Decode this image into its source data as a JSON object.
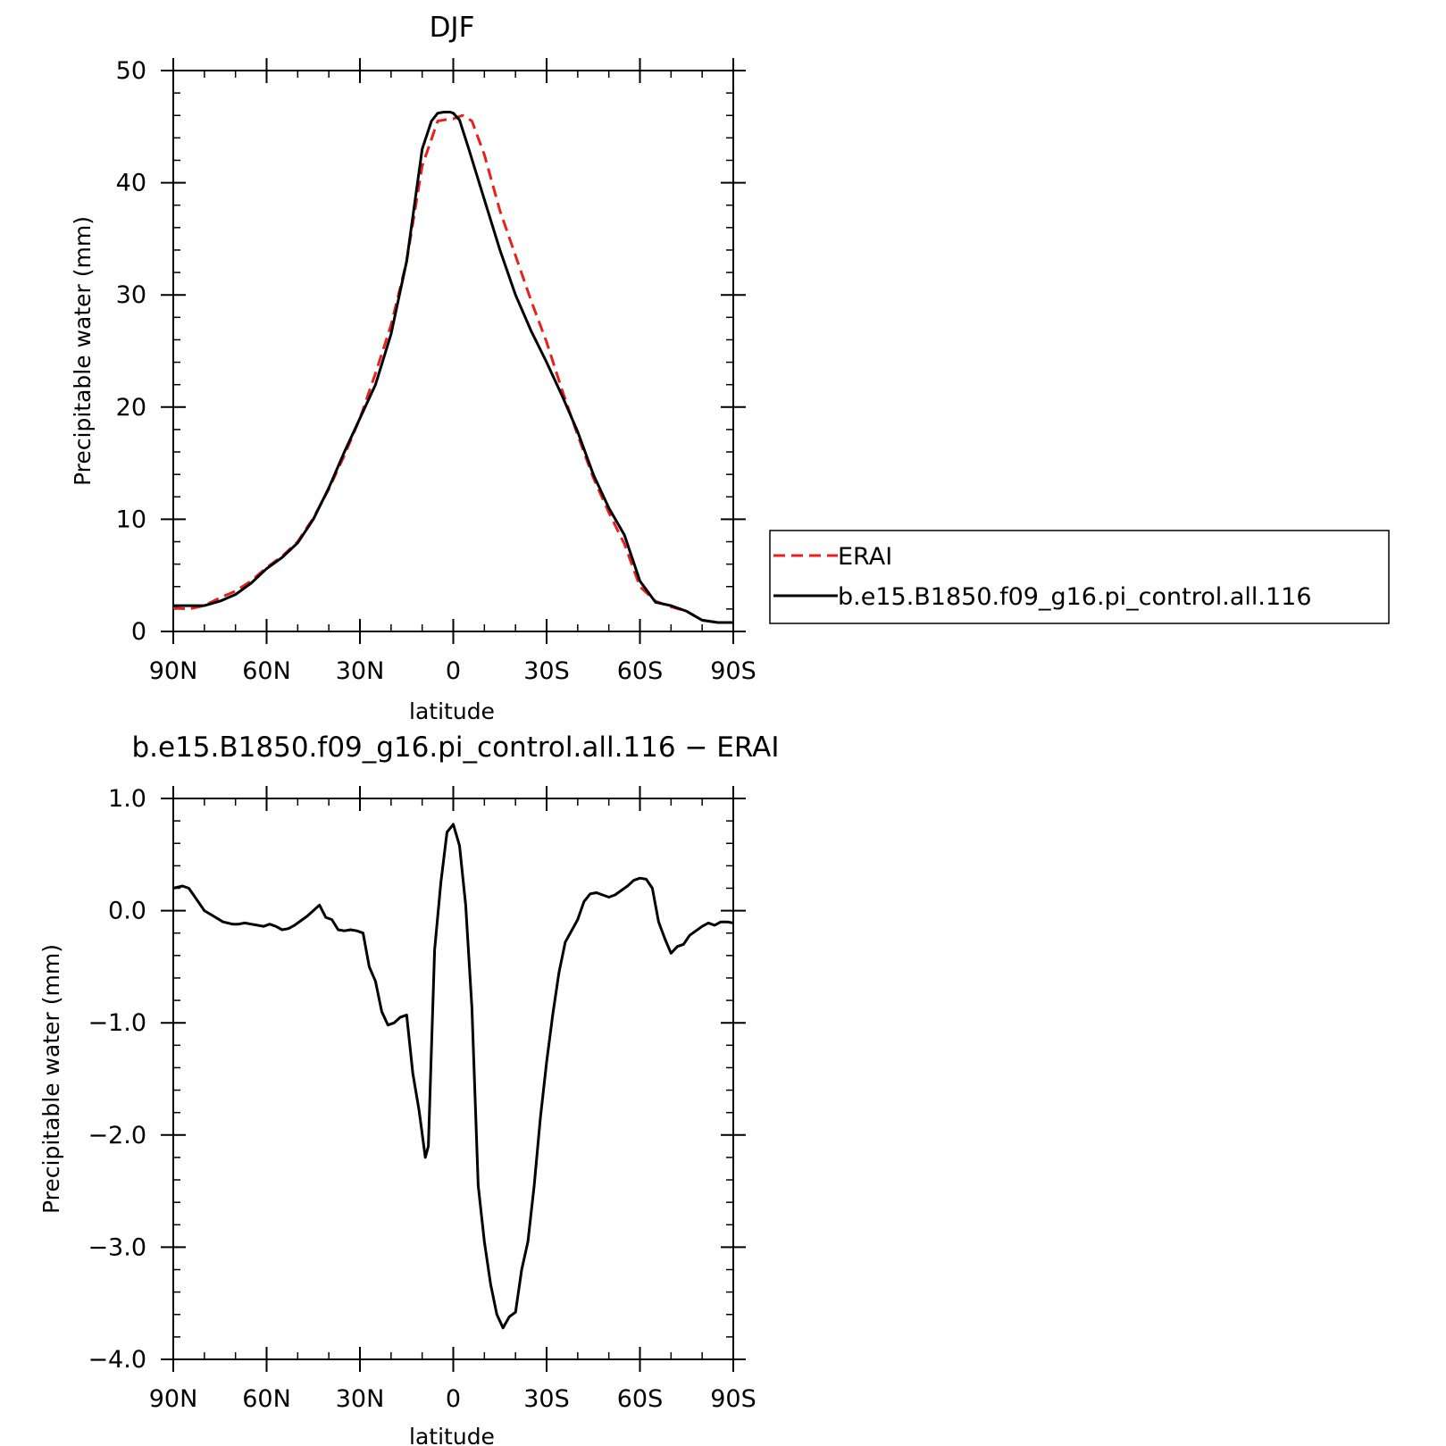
{
  "chart_data": [
    {
      "type": "line",
      "title": "DJF",
      "xlabel": "latitude",
      "ylabel": "Precipitable water (mm)",
      "xlim": [
        -90,
        90
      ],
      "ylim": [
        0,
        50
      ],
      "x_ticks": [
        -90,
        -60,
        -30,
        0,
        30,
        60,
        90
      ],
      "x_tick_labels": [
        "90N",
        "60N",
        "30N",
        "0",
        "30S",
        "60S",
        "90S"
      ],
      "y_ticks": [
        0,
        10,
        20,
        30,
        40,
        50
      ],
      "y_tick_labels": [
        "0",
        "10",
        "20",
        "30",
        "40",
        "50"
      ],
      "grid": false,
      "legend_position": "right",
      "series": [
        {
          "name": "ERAI",
          "color": "#e8211f",
          "dash": "dashed",
          "x": [
            -90,
            -85,
            -80,
            -75,
            -70,
            -65,
            -60,
            -55,
            -50,
            -45,
            -40,
            -35,
            -30,
            -25,
            -20,
            -15,
            -10,
            -5,
            -3,
            0,
            3,
            6,
            10,
            15,
            20,
            25,
            30,
            35,
            40,
            45,
            50,
            55,
            60,
            65,
            70,
            75,
            80,
            85,
            90
          ],
          "y": [
            2.1,
            2.0,
            2.3,
            3.0,
            3.6,
            4.5,
            5.7,
            6.7,
            8.0,
            10.1,
            12.7,
            15.7,
            19.0,
            23.0,
            27.3,
            33.0,
            41.5,
            45.5,
            45.6,
            45.7,
            46.0,
            45.5,
            42.5,
            37.5,
            33.5,
            29.5,
            25.8,
            21.5,
            17.5,
            13.7,
            10.6,
            7.8,
            4.0,
            2.7,
            2.2,
            1.8,
            1.0,
            0.8,
            0.8
          ],
          "y_note": "values at x 60..90 listed by order"
        },
        {
          "name": "b.e15.B1850.f09_g16.pi_control.all.116",
          "color": "#000000",
          "dash": "solid",
          "x": [
            -90,
            -85,
            -80,
            -75,
            -70,
            -65,
            -60,
            -55,
            -50,
            -45,
            -40,
            -35,
            -30,
            -25,
            -20,
            -15,
            -10,
            -7,
            -5,
            -3,
            -1,
            0,
            2,
            5,
            10,
            15,
            20,
            25,
            30,
            35,
            40,
            45,
            50,
            55,
            60,
            65,
            70,
            75,
            80,
            85,
            90
          ],
          "y": [
            2.3,
            2.3,
            2.3,
            2.7,
            3.3,
            4.3,
            5.6,
            6.6,
            7.9,
            10.0,
            12.8,
            16.0,
            19.0,
            22.0,
            26.5,
            33.0,
            43.0,
            45.5,
            46.2,
            46.3,
            46.3,
            46.2,
            45.6,
            43.0,
            38.5,
            34.0,
            30.0,
            26.8,
            24.0,
            21.0,
            17.8,
            14.0,
            11.0,
            8.6,
            4.5,
            2.6,
            2.3,
            1.8,
            1.0,
            0.8,
            0.8
          ]
        }
      ]
    },
    {
      "type": "line",
      "title": "b.e15.B1850.f09_g16.pi_control.all.116 − ERAI",
      "xlabel": "latitude",
      "ylabel": "Precipitable water (mm)",
      "xlim": [
        -90,
        90
      ],
      "ylim": [
        -4.0,
        1.0
      ],
      "x_ticks": [
        -90,
        -60,
        -30,
        0,
        30,
        60,
        90
      ],
      "x_tick_labels": [
        "90N",
        "60N",
        "30N",
        "0",
        "30S",
        "60S",
        "90S"
      ],
      "y_ticks": [
        1.0,
        0.0,
        -1.0,
        -2.0,
        -3.0,
        -4.0
      ],
      "y_tick_labels": [
        "1.0",
        "0.0",
        "−1.0",
        "−2.0",
        "−3.0",
        "−4.0"
      ],
      "grid": false,
      "series": [
        {
          "color": "#000000",
          "dash": "solid",
          "x": [
            -90,
            -87,
            -85,
            -83,
            -80,
            -77,
            -74,
            -71,
            -69,
            -67,
            -65,
            -63,
            -61,
            -59,
            -57,
            -55,
            -53,
            -51,
            -49,
            -47,
            -45,
            -43,
            -41,
            -39,
            -37,
            -35,
            -33,
            -31,
            -29,
            -27,
            -25,
            -23,
            -21,
            -19,
            -17,
            -15,
            -13,
            -11,
            -9,
            -8,
            -6,
            -4,
            -2,
            0,
            2,
            4,
            6,
            8,
            10,
            12,
            14,
            16,
            18,
            20,
            22,
            24,
            26,
            28,
            30,
            32,
            34,
            36,
            38,
            40,
            42,
            44,
            46,
            48,
            50,
            52,
            54,
            56,
            58,
            60,
            62,
            64,
            66,
            68,
            70,
            72,
            74,
            76,
            78,
            80,
            82,
            84,
            86,
            88,
            90
          ],
          "y": [
            0.2,
            0.22,
            0.2,
            0.12,
            0.0,
            -0.05,
            -0.1,
            -0.12,
            -0.12,
            -0.11,
            -0.12,
            -0.13,
            -0.14,
            -0.12,
            -0.14,
            -0.17,
            -0.16,
            -0.13,
            -0.09,
            -0.05,
            0.0,
            0.05,
            -0.06,
            -0.08,
            -0.17,
            -0.18,
            -0.17,
            -0.18,
            -0.2,
            -0.5,
            -0.63,
            -0.9,
            -1.02,
            -1.0,
            -0.95,
            -0.93,
            -1.45,
            -1.78,
            -2.2,
            -2.1,
            -0.35,
            0.25,
            0.7,
            0.77,
            0.58,
            0.05,
            -0.87,
            -2.45,
            -2.95,
            -3.33,
            -3.6,
            -3.72,
            -3.62,
            -3.58,
            -3.2,
            -2.95,
            -2.45,
            -1.85,
            -1.35,
            -0.92,
            -0.55,
            -0.28,
            -0.18,
            -0.08,
            0.08,
            0.15,
            0.16,
            0.14,
            0.12,
            0.14,
            0.18,
            0.22,
            0.27,
            0.29,
            0.28,
            0.2,
            -0.1,
            -0.25,
            -0.38,
            -0.32,
            -0.3,
            -0.22,
            -0.18,
            -0.14,
            -0.11,
            -0.13,
            -0.1,
            -0.1,
            -0.11
          ]
        }
      ]
    }
  ]
}
